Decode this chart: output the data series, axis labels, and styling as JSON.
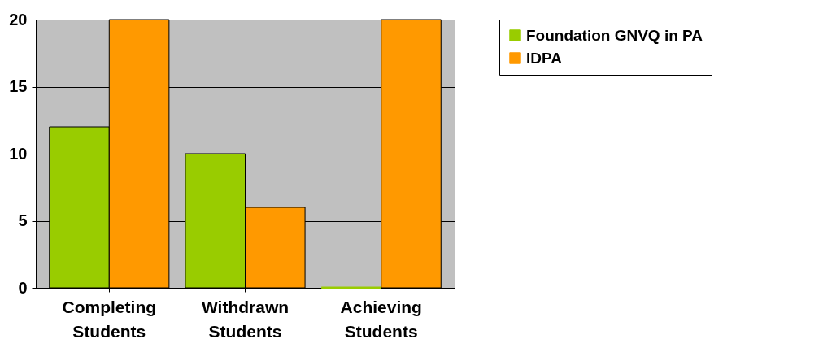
{
  "chart_data": {
    "type": "bar",
    "categories": [
      "Completing Students",
      "Withdrawn Students",
      "Achieving Students"
    ],
    "series": [
      {
        "name": "Foundation GNVQ in PA",
        "color": "#99cc00",
        "values": [
          12,
          10,
          0
        ]
      },
      {
        "name": "IDPA",
        "color": "#ff9900",
        "values": [
          20,
          6,
          20
        ]
      }
    ],
    "ylim": [
      0,
      20
    ],
    "yticks": [
      0,
      5,
      10,
      15,
      20
    ],
    "grid": "y",
    "legend": "right"
  }
}
